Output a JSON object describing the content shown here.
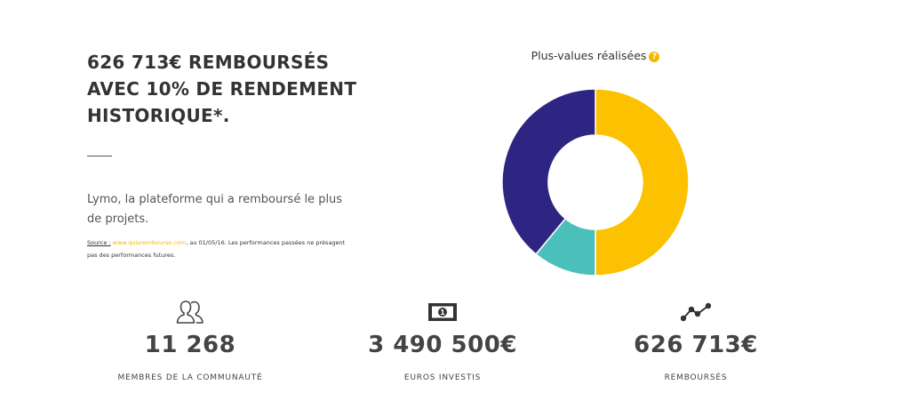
{
  "headline": {
    "line1": "626 713€ REMBOURSÉS",
    "line2": "AVEC 10% DE RENDEMENT",
    "line3": "HISTORIQUE*."
  },
  "description": "Lymo, la plateforme qui a remboursé le plus de projets.",
  "source": {
    "label": "Source :",
    "link": "www.quiarembourse.com",
    "text": ", au 01/05/16. Les performances passées ne présagent pas des performances futures."
  },
  "chart_title": "Plus-values réalisées",
  "help_icon_glyph": "?",
  "chart_data": {
    "type": "pie",
    "title": "Plus-values réalisées",
    "donut": true,
    "slices": [
      {
        "value": 50,
        "color": "#fcc100"
      },
      {
        "value": 11,
        "color": "#4bc0bb"
      },
      {
        "value": 39,
        "color": "#2e2583"
      }
    ],
    "start_angle_deg": 0
  },
  "stats": [
    {
      "icon": "users-icon",
      "value": "11 268",
      "label": "MEMBRES DE LA COMMUNAUTÉ"
    },
    {
      "icon": "banknote-icon",
      "value": "3 490 500€",
      "label": "EUROS INVESTIS"
    },
    {
      "icon": "trend-line-icon",
      "value": "626 713€",
      "label": "REMBOURSÉS"
    }
  ],
  "colors": {
    "accent": "#f5b800",
    "text": "#333333"
  }
}
